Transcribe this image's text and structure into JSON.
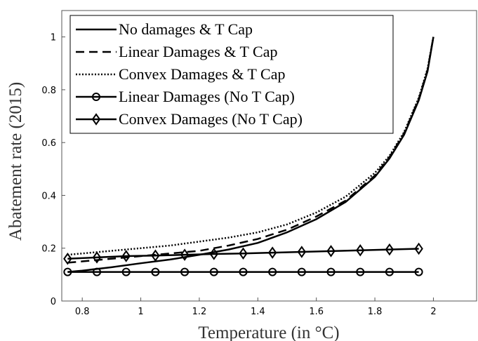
{
  "chart_data": {
    "type": "line",
    "xlabel": "Temperature (in °C)",
    "ylabel": "Abatement rate (2015)",
    "xlim": [
      0.73,
      2.15
    ],
    "ylim": [
      0,
      1.1
    ],
    "xticks": [
      0.8,
      1,
      1.2,
      1.4,
      1.6,
      1.8,
      2
    ],
    "yticks": [
      0,
      0.2,
      0.4,
      0.6,
      0.8,
      1
    ],
    "legend": "upper left",
    "series": [
      {
        "name": "No damages & T Cap",
        "color": "#000000",
        "style": "solid",
        "x": [
          0.75,
          0.8,
          0.9,
          1.0,
          1.1,
          1.2,
          1.3,
          1.4,
          1.5,
          1.6,
          1.7,
          1.8,
          1.85,
          1.9,
          1.95,
          1.98,
          2.0
        ],
        "values": [
          0.11,
          0.115,
          0.128,
          0.143,
          0.157,
          0.175,
          0.195,
          0.22,
          0.26,
          0.31,
          0.375,
          0.47,
          0.54,
          0.63,
          0.76,
          0.87,
          1.0
        ]
      },
      {
        "name": "Linear Damages & T Cap",
        "color": "#000000",
        "style": "dashed",
        "x": [
          0.75,
          0.8,
          0.9,
          1.0,
          1.1,
          1.2,
          1.3,
          1.4,
          1.5,
          1.6,
          1.7,
          1.8,
          1.85,
          1.9,
          1.95,
          1.98,
          2.0
        ],
        "values": [
          0.145,
          0.15,
          0.16,
          0.17,
          0.18,
          0.19,
          0.21,
          0.235,
          0.27,
          0.32,
          0.38,
          0.475,
          0.545,
          0.635,
          0.765,
          0.875,
          1.0
        ]
      },
      {
        "name": "Convex Damages & T Cap",
        "color": "#000000",
        "style": "dotted",
        "x": [
          0.75,
          0.8,
          0.9,
          1.0,
          1.1,
          1.2,
          1.3,
          1.4,
          1.5,
          1.6,
          1.7,
          1.8,
          1.85,
          1.9,
          1.95,
          1.98,
          2.0
        ],
        "values": [
          0.175,
          0.18,
          0.19,
          0.2,
          0.21,
          0.225,
          0.24,
          0.26,
          0.29,
          0.335,
          0.395,
          0.485,
          0.55,
          0.64,
          0.77,
          0.88,
          1.0
        ]
      },
      {
        "name": "Linear Damages (No T Cap)",
        "color": "#000000",
        "style": "solid",
        "marker": "circle",
        "x": [
          0.75,
          0.85,
          0.95,
          1.05,
          1.15,
          1.25,
          1.35,
          1.45,
          1.55,
          1.65,
          1.75,
          1.85,
          1.95
        ],
        "values": [
          0.11,
          0.11,
          0.11,
          0.11,
          0.11,
          0.11,
          0.11,
          0.11,
          0.11,
          0.11,
          0.11,
          0.11,
          0.11
        ]
      },
      {
        "name": "Convex Damages (No T Cap)",
        "color": "#000000",
        "style": "solid",
        "marker": "diamond",
        "x": [
          0.75,
          0.85,
          0.95,
          1.05,
          1.15,
          1.25,
          1.35,
          1.45,
          1.55,
          1.65,
          1.75,
          1.85,
          1.95
        ],
        "values": [
          0.16,
          0.165,
          0.17,
          0.172,
          0.175,
          0.178,
          0.18,
          0.183,
          0.186,
          0.189,
          0.192,
          0.195,
          0.198
        ]
      }
    ]
  }
}
